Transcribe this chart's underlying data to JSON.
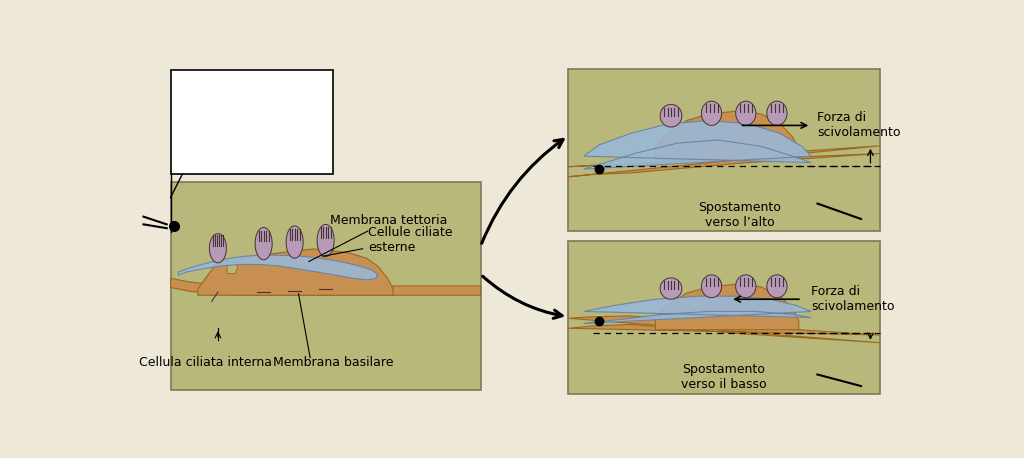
{
  "bg_color": "#ede8d8",
  "panel_bg": "#b8b87a",
  "membrane_tettoria_color": "#99b8d8",
  "membrane_basilare_color": "#c89050",
  "cell_body_color": "#b89ab8",
  "cell_outline": "#443333",
  "font_size": 9,
  "labels": {
    "membrana_tettoria": "Membrana tettoria",
    "cellule_ciliate_esterne": "Cellule ciliate\nesterne",
    "cellula_ciliata_interna": "Cellula ciliata interna",
    "membrana_basilare": "Membrana basilare",
    "forza_su": "Forza di\nscivolamento",
    "forza_giu": "Forza di\nscivolamento",
    "spostamento_alto": "Spostamento\nverso l’alto",
    "spostamento_basso": "Spostamento\nverso il basso"
  }
}
